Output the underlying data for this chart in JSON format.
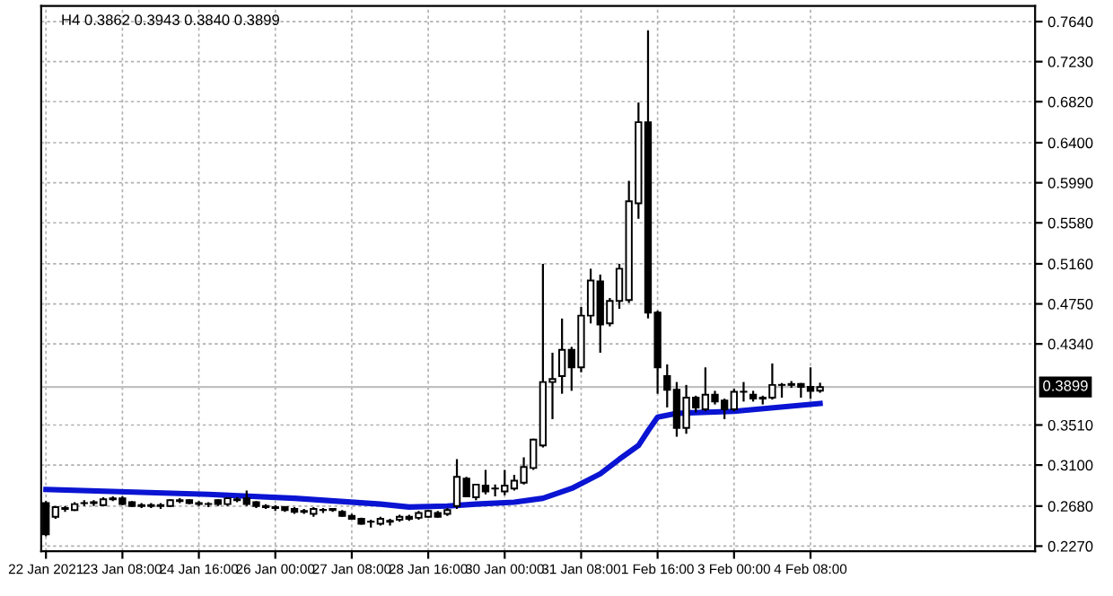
{
  "chart_data": {
    "type": "candlestick",
    "title": "H4 0.3862 0.3943 0.3840 0.3899",
    "x": [
      "2021-01-22T00:00",
      "2021-01-22T04:00",
      "2021-01-22T08:00",
      "2021-01-22T12:00",
      "2021-01-22T16:00",
      "2021-01-22T20:00",
      "2021-01-23T00:00",
      "2021-01-23T04:00",
      "2021-01-23T08:00",
      "2021-01-23T12:00",
      "2021-01-23T16:00",
      "2021-01-23T20:00",
      "2021-01-24T00:00",
      "2021-01-24T04:00",
      "2021-01-24T08:00",
      "2021-01-24T12:00",
      "2021-01-24T16:00",
      "2021-01-24T20:00",
      "2021-01-25T00:00",
      "2021-01-25T04:00",
      "2021-01-25T08:00",
      "2021-01-25T12:00",
      "2021-01-25T16:00",
      "2021-01-25T20:00",
      "2021-01-26T00:00",
      "2021-01-26T04:00",
      "2021-01-26T08:00",
      "2021-01-26T12:00",
      "2021-01-26T16:00",
      "2021-01-26T20:00",
      "2021-01-27T00:00",
      "2021-01-27T04:00",
      "2021-01-27T08:00",
      "2021-01-27T12:00",
      "2021-01-27T16:00",
      "2021-01-27T20:00",
      "2021-01-28T00:00",
      "2021-01-28T04:00",
      "2021-01-28T08:00",
      "2021-01-28T12:00",
      "2021-01-28T16:00",
      "2021-01-28T20:00",
      "2021-01-29T00:00",
      "2021-01-29T04:00",
      "2021-01-29T08:00",
      "2021-01-29T12:00",
      "2021-01-29T16:00",
      "2021-01-29T20:00",
      "2021-01-30T00:00",
      "2021-01-30T04:00",
      "2021-01-30T08:00",
      "2021-01-30T12:00",
      "2021-01-30T16:00",
      "2021-01-30T20:00",
      "2021-01-31T00:00",
      "2021-01-31T04:00",
      "2021-01-31T08:00",
      "2021-01-31T12:00",
      "2021-01-31T16:00",
      "2021-01-31T20:00",
      "2021-02-01T00:00",
      "2021-02-01T04:00",
      "2021-02-01T08:00",
      "2021-02-01T12:00",
      "2021-02-01T16:00",
      "2021-02-01T20:00",
      "2021-02-02T00:00",
      "2021-02-02T04:00",
      "2021-02-02T08:00",
      "2021-02-02T12:00",
      "2021-02-02T16:00",
      "2021-02-02T20:00",
      "2021-02-03T00:00",
      "2021-02-03T04:00",
      "2021-02-03T08:00",
      "2021-02-03T12:00",
      "2021-02-03T16:00",
      "2021-02-03T20:00",
      "2021-02-04T00:00",
      "2021-02-04T04:00",
      "2021-02-04T08:00",
      "2021-02-04T12:00"
    ],
    "ohlc": [
      [
        0.271,
        0.273,
        0.237,
        0.239
      ],
      [
        0.257,
        0.268,
        0.255,
        0.267
      ],
      [
        0.265,
        0.268,
        0.262,
        0.266
      ],
      [
        0.264,
        0.272,
        0.263,
        0.27
      ],
      [
        0.271,
        0.274,
        0.268,
        0.271
      ],
      [
        0.271,
        0.274,
        0.268,
        0.272
      ],
      [
        0.269,
        0.277,
        0.268,
        0.275
      ],
      [
        0.275,
        0.278,
        0.273,
        0.276
      ],
      [
        0.276,
        0.278,
        0.269,
        0.27
      ],
      [
        0.272,
        0.273,
        0.267,
        0.268
      ],
      [
        0.269,
        0.271,
        0.266,
        0.268
      ],
      [
        0.268,
        0.271,
        0.266,
        0.269
      ],
      [
        0.269,
        0.271,
        0.265,
        0.268
      ],
      [
        0.268,
        0.275,
        0.267,
        0.274
      ],
      [
        0.274,
        0.276,
        0.271,
        0.273
      ],
      [
        0.274,
        0.275,
        0.27,
        0.271
      ],
      [
        0.271,
        0.273,
        0.268,
        0.27
      ],
      [
        0.27,
        0.272,
        0.267,
        0.27
      ],
      [
        0.274,
        0.275,
        0.268,
        0.27
      ],
      [
        0.27,
        0.277,
        0.268,
        0.276
      ],
      [
        0.275,
        0.277,
        0.272,
        0.274
      ],
      [
        0.276,
        0.284,
        0.268,
        0.27
      ],
      [
        0.272,
        0.273,
        0.266,
        0.268
      ],
      [
        0.268,
        0.27,
        0.265,
        0.267
      ],
      [
        0.267,
        0.269,
        0.263,
        0.266
      ],
      [
        0.267,
        0.268,
        0.262,
        0.264
      ],
      [
        0.265,
        0.267,
        0.26,
        0.262
      ],
      [
        0.263,
        0.265,
        0.26,
        0.262
      ],
      [
        0.26,
        0.267,
        0.257,
        0.265
      ],
      [
        0.264,
        0.266,
        0.261,
        0.264
      ],
      [
        0.264,
        0.266,
        0.262,
        0.265
      ],
      [
        0.262,
        0.264,
        0.257,
        0.258
      ],
      [
        0.258,
        0.26,
        0.254,
        0.255
      ],
      [
        0.255,
        0.256,
        0.249,
        0.25
      ],
      [
        0.252,
        0.254,
        0.246,
        0.252
      ],
      [
        0.25,
        0.257,
        0.248,
        0.255
      ],
      [
        0.252,
        0.255,
        0.248,
        0.253
      ],
      [
        0.254,
        0.259,
        0.252,
        0.257
      ],
      [
        0.257,
        0.259,
        0.253,
        0.255
      ],
      [
        0.256,
        0.263,
        0.254,
        0.261
      ],
      [
        0.257,
        0.264,
        0.256,
        0.263
      ],
      [
        0.261,
        0.263,
        0.256,
        0.257
      ],
      [
        0.26,
        0.266,
        0.258,
        0.264
      ],
      [
        0.268,
        0.316,
        0.265,
        0.298
      ],
      [
        0.296,
        0.298,
        0.278,
        0.278
      ],
      [
        0.277,
        0.29,
        0.274,
        0.29
      ],
      [
        0.289,
        0.305,
        0.28,
        0.283
      ],
      [
        0.286,
        0.29,
        0.278,
        0.286
      ],
      [
        0.283,
        0.305,
        0.279,
        0.289
      ],
      [
        0.286,
        0.3,
        0.284,
        0.294
      ],
      [
        0.292,
        0.318,
        0.29,
        0.308
      ],
      [
        0.307,
        0.337,
        0.305,
        0.336
      ],
      [
        0.33,
        0.516,
        0.328,
        0.395
      ],
      [
        0.395,
        0.425,
        0.357,
        0.398
      ],
      [
        0.401,
        0.46,
        0.383,
        0.428
      ],
      [
        0.428,
        0.431,
        0.386,
        0.41
      ],
      [
        0.41,
        0.472,
        0.405,
        0.463
      ],
      [
        0.463,
        0.511,
        0.455,
        0.499
      ],
      [
        0.498,
        0.505,
        0.425,
        0.454
      ],
      [
        0.455,
        0.481,
        0.452,
        0.478
      ],
      [
        0.478,
        0.516,
        0.47,
        0.511
      ],
      [
        0.479,
        0.601,
        0.476,
        0.58
      ],
      [
        0.578,
        0.681,
        0.562,
        0.661
      ],
      [
        0.661,
        0.755,
        0.46,
        0.466
      ],
      [
        0.466,
        0.468,
        0.383,
        0.41
      ],
      [
        0.401,
        0.413,
        0.369,
        0.387
      ],
      [
        0.387,
        0.395,
        0.339,
        0.348
      ],
      [
        0.348,
        0.392,
        0.342,
        0.379
      ],
      [
        0.379,
        0.381,
        0.364,
        0.369
      ],
      [
        0.367,
        0.41,
        0.365,
        0.382
      ],
      [
        0.382,
        0.386,
        0.372,
        0.375
      ],
      [
        0.376,
        0.378,
        0.357,
        0.367
      ],
      [
        0.367,
        0.388,
        0.365,
        0.385
      ],
      [
        0.385,
        0.395,
        0.375,
        0.385
      ],
      [
        0.382,
        0.386,
        0.375,
        0.378
      ],
      [
        0.378,
        0.381,
        0.372,
        0.379
      ],
      [
        0.379,
        0.414,
        0.377,
        0.392
      ],
      [
        0.392,
        0.394,
        0.379,
        0.392
      ],
      [
        0.392,
        0.396,
        0.389,
        0.393
      ],
      [
        0.393,
        0.394,
        0.379,
        0.39
      ],
      [
        0.39,
        0.41,
        0.378,
        0.386
      ],
      [
        0.3862,
        0.3943,
        0.384,
        0.3899
      ]
    ],
    "series": [
      {
        "type": "line",
        "color": "#0a14d2",
        "x": [
          "2021-01-22T00:00",
          "2021-01-24T20:00",
          "2021-01-26T08:00",
          "2021-01-27T20:00",
          "2021-01-28T08:00",
          "2021-01-29T00:00",
          "2021-01-29T12:00",
          "2021-01-30T04:00",
          "2021-01-30T16:00",
          "2021-01-31T04:00",
          "2021-01-31T16:00",
          "2021-02-01T00:00",
          "2021-02-01T08:00",
          "2021-02-01T12:00",
          "2021-02-01T16:00",
          "2021-02-02T00:00",
          "2021-02-03T00:00",
          "2021-02-04T12:00"
        ],
        "values": [
          0.285,
          0.28,
          0.276,
          0.27,
          0.267,
          0.268,
          0.27,
          0.272,
          0.276,
          0.286,
          0.301,
          0.316,
          0.33,
          0.345,
          0.359,
          0.363,
          0.365,
          0.373
        ]
      }
    ],
    "xlim": [
      "2021-01-21T22:00",
      "2021-02-08T06:00"
    ],
    "xticks": [
      {
        "value": "2021-01-22T00:00",
        "label": "22 Jan 2021"
      },
      {
        "value": "2021-01-23T08:00",
        "label": "23 Jan 08:00"
      },
      {
        "value": "2021-01-24T16:00",
        "label": "24 Jan 16:00"
      },
      {
        "value": "2021-01-26T00:00",
        "label": "26 Jan 00:00"
      },
      {
        "value": "2021-01-27T08:00",
        "label": "27 Jan 08:00"
      },
      {
        "value": "2021-01-28T16:00",
        "label": "28 Jan 16:00"
      },
      {
        "value": "2021-01-30T00:00",
        "label": "30 Jan 00:00"
      },
      {
        "value": "2021-01-31T08:00",
        "label": "31 Jan 08:00"
      },
      {
        "value": "2021-02-01T16:00",
        "label": "1 Feb 16:00"
      },
      {
        "value": "2021-02-03T00:00",
        "label": "3 Feb 00:00"
      },
      {
        "value": "2021-02-04T08:00",
        "label": "4 Feb 08:00"
      }
    ],
    "ylim": [
      0.2217,
      0.78
    ],
    "yticks": [
      {
        "value": 0.764,
        "label": "0.7640"
      },
      {
        "value": 0.723,
        "label": "0.7230"
      },
      {
        "value": 0.682,
        "label": "0.6820"
      },
      {
        "value": 0.64,
        "label": "0.6400"
      },
      {
        "value": 0.599,
        "label": "0.5990"
      },
      {
        "value": 0.558,
        "label": "0.5580"
      },
      {
        "value": 0.516,
        "label": "0.5160"
      },
      {
        "value": 0.475,
        "label": "0.4750"
      },
      {
        "value": 0.434,
        "label": "0.4340"
      },
      {
        "value": 0.351,
        "label": "0.3510"
      },
      {
        "value": 0.31,
        "label": "0.3100"
      },
      {
        "value": 0.268,
        "label": "0.2680"
      },
      {
        "value": 0.227,
        "label": "0.2270"
      }
    ],
    "ref_lines": [
      {
        "axis": "y",
        "value": 0.3899,
        "label": "0.3899",
        "color": "#c0c0c0"
      }
    ],
    "color": "#000000",
    "grid": true
  }
}
